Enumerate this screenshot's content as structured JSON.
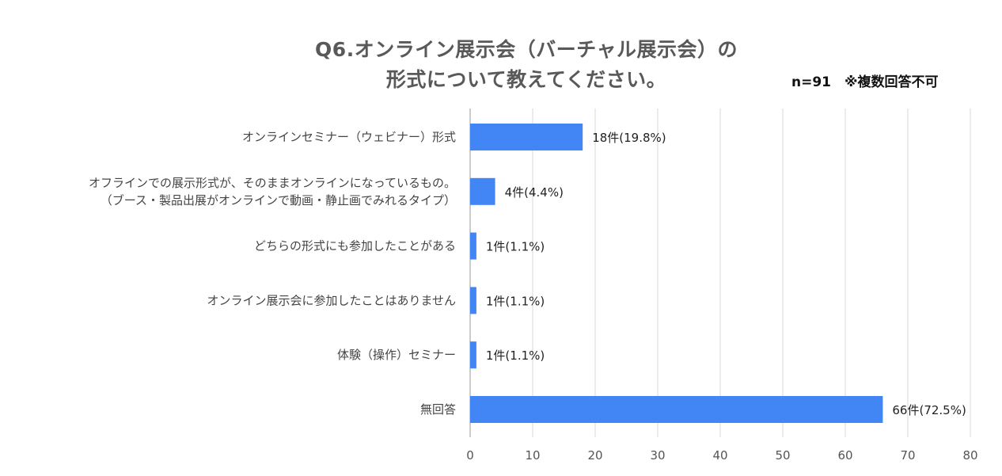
{
  "chart_data": {
    "type": "bar",
    "orientation": "horizontal",
    "title": "Q6.オンライン展示会（バーチャル展示会）の 形式について教えてください。",
    "title_lines": [
      "Q6.オンライン展示会（バーチャル展示会）の",
      "形式について教えてください。"
    ],
    "note": "n=91　※複数回答不可",
    "categories": [
      [
        "オンラインセミナー（ウェビナー）形式"
      ],
      [
        "オフラインでの展示形式が、そのままオンラインになっているもの。",
        "（ブース・製品出展がオンラインで動画・静止画でみれるタイプ）"
      ],
      [
        "どちらの形式にも参加したことがある"
      ],
      [
        "オンライン展示会に参加したことはありません"
      ],
      [
        "体験（操作）セミナー"
      ],
      [
        "無回答"
      ]
    ],
    "values": [
      18,
      4,
      1,
      1,
      1,
      66
    ],
    "data_labels": [
      "18件(19.8%)",
      "4件(4.4%)",
      "1件(1.1%)",
      "1件(1.1%)",
      "1件(1.1%)",
      "66件(72.5%)"
    ],
    "xlim": [
      0,
      80
    ],
    "xticks": [
      0,
      10,
      20,
      30,
      40,
      50,
      60,
      70,
      80
    ],
    "xlabel": "",
    "ylabel": "",
    "grid": true,
    "legend": "none",
    "bar_color": "#4285F4",
    "grid_color": "#D9D9D9"
  }
}
